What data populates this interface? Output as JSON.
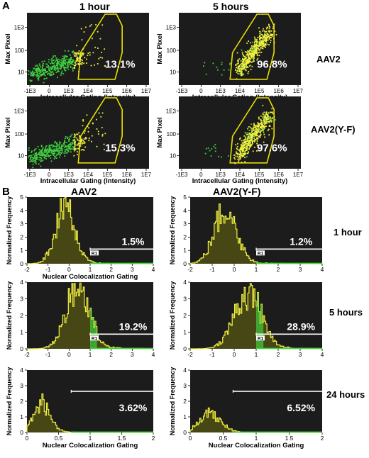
{
  "panel_a": {
    "letter": "A",
    "col_titles": [
      "1 hour",
      "5 hours"
    ],
    "row_labels": [
      "AAV2",
      "AAV2(Y-F)"
    ]
  },
  "panel_b": {
    "letter": "B",
    "col_titles": [
      "AAV2",
      "AAV2(Y-F)"
    ],
    "row_labels": [
      "1 hour",
      "5 hours",
      "24 hours"
    ]
  },
  "colors": {
    "background": "#1c1c1c",
    "gate": "#e8e000",
    "green": "#3fd23f",
    "yellow": "#f0f040",
    "white": "#ffffff"
  },
  "chart_data": [
    {
      "id": "a11",
      "type": "scatter",
      "group": "A",
      "row": 0,
      "col": 0,
      "title": "",
      "xlabel": "Intracellular Gating (Intensity)",
      "ylabel": "Max Pixel",
      "xticks": [
        "-1E3",
        "0",
        "1E3",
        "1E4",
        "1E5",
        "1E6",
        "1E7"
      ],
      "yticks": [
        "10",
        "100",
        "1E3"
      ],
      "percent": "13.1%",
      "distribution": "low"
    },
    {
      "id": "a12",
      "type": "scatter",
      "group": "A",
      "row": 0,
      "col": 1,
      "title": "",
      "xlabel": "Intracellular Gating (Intensity)",
      "ylabel": "Max Pixel",
      "xticks": [
        "-1E3",
        "0",
        "1E3",
        "1E4",
        "1E5",
        "1E6",
        "1E7"
      ],
      "yticks": [
        "10",
        "100",
        "1E3"
      ],
      "percent": "96.8%",
      "distribution": "high"
    },
    {
      "id": "a21",
      "type": "scatter",
      "group": "A",
      "row": 1,
      "col": 0,
      "title": "",
      "xlabel": "Intracellular Gating (Intensity)",
      "ylabel": "Max Pixel",
      "xticks": [
        "-1E3",
        "0",
        "1E3",
        "1E4",
        "1E5",
        "1E6",
        "1E7"
      ],
      "yticks": [
        "10",
        "100",
        "1E3"
      ],
      "percent": "15.3%",
      "distribution": "low"
    },
    {
      "id": "a22",
      "type": "scatter",
      "group": "A",
      "row": 1,
      "col": 1,
      "title": "",
      "xlabel": "Intracellular Gating (Intensity)",
      "ylabel": "Max Pixel",
      "xticks": [
        "-1E3",
        "0",
        "1E3",
        "1E4",
        "1E5",
        "1E6",
        "1E7"
      ],
      "yticks": [
        "10",
        "100",
        "1E3"
      ],
      "percent": "97.6%",
      "distribution": "high"
    },
    {
      "id": "b11",
      "type": "area",
      "group": "B",
      "row": 0,
      "col": 0,
      "xlabel": "Nuclear Colocalization Gating",
      "ylabel": "Normalized Frequency",
      "xlim": [
        -2,
        4
      ],
      "ylim": [
        0,
        5
      ],
      "xticks": [
        "-2",
        "-1",
        "0",
        "1",
        "2",
        "3",
        "4"
      ],
      "yticks": [
        "0",
        "1",
        "2",
        "3",
        "4",
        "5"
      ],
      "gate_start": 1.0,
      "gate_label": "R1",
      "percent": "1.5%",
      "peak_x": -0.2,
      "peak_y": 4.4,
      "spread": 0.45
    },
    {
      "id": "b12",
      "type": "area",
      "group": "B",
      "row": 0,
      "col": 1,
      "xlabel": "",
      "ylabel": "Normalized Frequency",
      "xlim": [
        -2,
        4
      ],
      "ylim": [
        0,
        5
      ],
      "xticks": [
        "-2",
        "-1",
        "0",
        "1",
        "2",
        "3",
        "4"
      ],
      "yticks": [
        "0",
        "1",
        "2",
        "3",
        "4",
        "5"
      ],
      "gate_start": 1.0,
      "gate_label": "R1",
      "percent": "1.2%",
      "peak_x": -0.4,
      "peak_y": 4.0,
      "spread": 0.5
    },
    {
      "id": "b21",
      "type": "area",
      "group": "B",
      "row": 1,
      "col": 0,
      "xlabel": "",
      "ylabel": "Normalized Frequency",
      "xlim": [
        -2,
        4
      ],
      "ylim": [
        0,
        4
      ],
      "xticks": [
        "-2",
        "-1",
        "0",
        "1",
        "2",
        "3",
        "4"
      ],
      "yticks": [
        "0",
        "1",
        "2",
        "3",
        "4"
      ],
      "gate_start": 1.0,
      "gate_label": "R1",
      "percent": "19.2%",
      "peak_x": 0.4,
      "peak_y": 3.6,
      "spread": 0.55
    },
    {
      "id": "b22",
      "type": "area",
      "group": "B",
      "row": 1,
      "col": 1,
      "xlabel": "",
      "ylabel": "Normalized Frequency",
      "xlim": [
        -2,
        4
      ],
      "ylim": [
        0,
        4
      ],
      "xticks": [
        "-2",
        "-1",
        "0",
        "1",
        "2",
        "3",
        "4"
      ],
      "yticks": [
        "0",
        "1",
        "2",
        "3",
        "4"
      ],
      "gate_start": 1.0,
      "gate_label": "R1",
      "percent": "28.9%",
      "peak_x": 0.6,
      "peak_y": 3.3,
      "spread": 0.6
    },
    {
      "id": "b31",
      "type": "area",
      "group": "B",
      "row": 2,
      "col": 0,
      "xlabel": "Nuclear Colocalization Gating",
      "ylabel": "Normalized Frequency",
      "xlim": [
        0,
        2
      ],
      "ylim": [
        0,
        4
      ],
      "xticks": [
        "0",
        "0.5",
        "1",
        "1.5",
        "2"
      ],
      "yticks": [
        "0",
        "1",
        "2",
        "3",
        "4"
      ],
      "gate_start": 0.7,
      "gate_label": "",
      "percent": "3.62%",
      "peak_x": 0.22,
      "peak_y": 1.8,
      "spread": 0.14
    },
    {
      "id": "b32",
      "type": "area",
      "group": "B",
      "row": 2,
      "col": 1,
      "xlabel": "Nuclear Colocalization Gating",
      "ylabel": "Normalized Frequency",
      "xlim": [
        0,
        2
      ],
      "ylim": [
        0,
        4
      ],
      "xticks": [
        "0",
        "0.5",
        "1",
        "1.5",
        "2"
      ],
      "yticks": [
        "0",
        "1",
        "2",
        "3",
        "4"
      ],
      "gate_start": 0.65,
      "gate_label": "",
      "percent": "6.52%",
      "peak_x": 0.3,
      "peak_y": 1.2,
      "spread": 0.16
    }
  ]
}
